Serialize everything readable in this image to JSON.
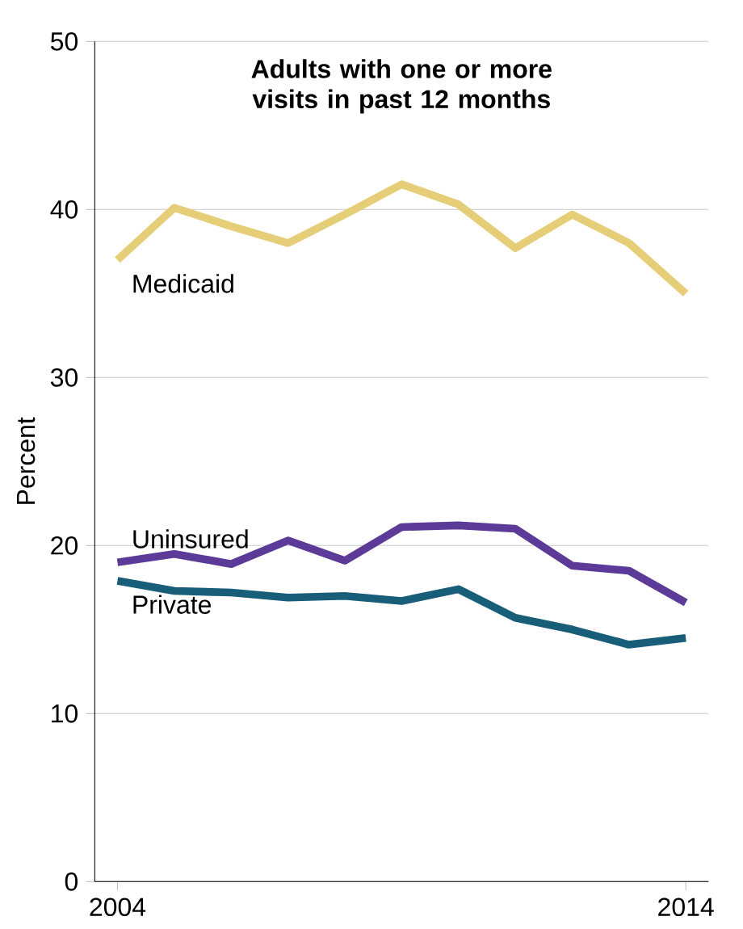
{
  "chart_data": {
    "type": "line",
    "title": "Adults with one or more visits in past 12 months",
    "ylabel": "Percent",
    "x": [
      2004,
      2005,
      2006,
      2007,
      2008,
      2009,
      2010,
      2011,
      2012,
      2013,
      2014
    ],
    "series": [
      {
        "name": "Medicaid",
        "color": "#e6cd78",
        "values": [
          37.0,
          40.1,
          39.0,
          38.0,
          39.7,
          41.5,
          40.3,
          37.7,
          39.7,
          38.0,
          35.0
        ]
      },
      {
        "name": "Uninsured",
        "color": "#5b3a98",
        "values": [
          19.0,
          19.5,
          18.9,
          20.3,
          19.1,
          21.1,
          21.2,
          21.0,
          18.8,
          18.5,
          16.6
        ]
      },
      {
        "name": "Private",
        "color": "#185e78",
        "values": [
          17.9,
          17.3,
          17.2,
          16.9,
          17.0,
          16.7,
          17.4,
          15.7,
          15.0,
          14.1,
          14.5
        ]
      }
    ],
    "xlim": [
      2003.6,
      2014.4
    ],
    "xticks": [
      2004,
      2014
    ],
    "ylim": [
      0,
      50
    ],
    "yticks": [
      0,
      10,
      20,
      30,
      40,
      50
    ],
    "grid": "y",
    "marker": "none",
    "line_style": "solid"
  }
}
